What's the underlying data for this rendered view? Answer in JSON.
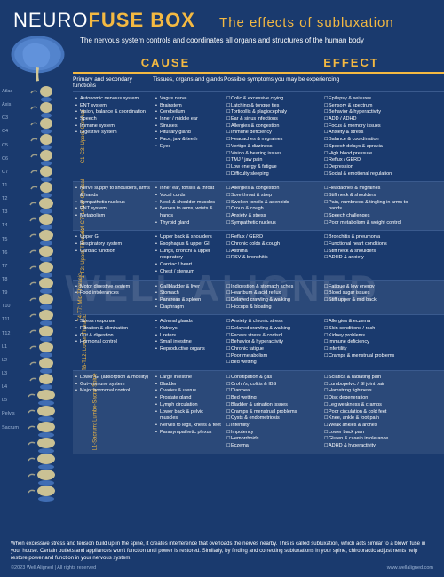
{
  "title": {
    "pre": "NEURO",
    "bold": "FUSE BOX",
    "sub": "The effects of subluxation"
  },
  "tagline": "The nervous system controls and coordinates all organs and structures of the human body",
  "colheads": [
    "CAUSE",
    "EFFECT"
  ],
  "subheads": {
    "c1": "Primary and secondary functions",
    "c2": "Tissues, organs and glands",
    "c3": "Possible symptoms you may be experiencing"
  },
  "spineLabels": [
    "Atlas",
    "Axis",
    "C3",
    "C4",
    "C5",
    "C6",
    "C7",
    "T1",
    "T2",
    "T3",
    "T4",
    "T5",
    "T6",
    "T7",
    "T8",
    "T9",
    "T10",
    "T11",
    "T12",
    "L1",
    "L2",
    "L3",
    "L4",
    "L5",
    "Pelvis",
    "Sacrum"
  ],
  "sections": [
    {
      "label": "C1-C3:\nUpper Cervical",
      "alt": false,
      "c1": [
        "Autonomic nervous system",
        "ENT system",
        "Vision, balance & coordination",
        "Speech",
        "Immune system",
        "Digestive system"
      ],
      "c2": [
        "Vagus nerve",
        "Brainstem",
        "Cerebellum",
        "Inner / middle ear",
        "Sinuses",
        "Pituitary gland",
        "Face, jaw & teeth",
        "Eyes"
      ],
      "c3": [
        "Colic & excessive crying",
        "Latching & tongue ties",
        "Torticollis & plagiocephaly",
        "Ear & sinus infections",
        "Allergies & congestion",
        "Immune deficiency",
        "Headaches & migraines",
        "Vertigo & dizziness",
        "Vision & hearing issues",
        "TMJ / jaw pain",
        "Low energy & fatigue",
        "Difficulty sleeping"
      ],
      "c4": [
        "Epilepsy & seizures",
        "Sensory & spectrum",
        "Behavior & hyperactivity",
        "ADD / ADHD",
        "Focus & memory issues",
        "Anxiety & stress",
        "Balance & coordination",
        "Speech delays & apraxia",
        "High blood pressure",
        "Reflux / GERD",
        "Depression",
        "Social & emotional regulation"
      ]
    },
    {
      "label": "C4-C7:\nLower Cervical",
      "alt": true,
      "c1": [
        "Nerve supply to shoulders, arms & hands",
        "Sympathetic nucleus",
        "ENT system",
        "Metabolism"
      ],
      "c2": [
        "Inner ear, tonsils & throat",
        "Vocal cords",
        "Neck & shoulder muscles",
        "Nerves to arms, wrists & hands",
        "Thyroid gland"
      ],
      "c3": [
        "Allergies & congestion",
        "Sore throat & strep",
        "Swollen tonsils & adenoids",
        "Croup & cough",
        "Anxiety & stress",
        "Sympathetic nucleus"
      ],
      "c4": [
        "Headaches & migraines",
        "Stiff neck & shoulders",
        "Pain, numbness & tingling in arms to hands",
        "Speech challenges",
        "Poor metabolism & weight control"
      ]
    },
    {
      "label": "T1-T2:\nUpper Thoracic",
      "alt": false,
      "c1": [
        "Upper GI",
        "Respiratory system",
        "Cardiac function"
      ],
      "c2": [
        "Upper back & shoulders",
        "Esophagus & upper GI",
        "Lungs, bronchi & upper respiratory",
        "Cardiac / heart",
        "Chest / sternum"
      ],
      "c3": [
        "Reflux / GERD",
        "Chronic colds & cough",
        "Asthma",
        "RSV & bronchitis"
      ],
      "c4": [
        "Bronchitis & pneumonia",
        "Functional heart conditions",
        "Stiff neck & shoulders",
        "ADHD & anxiety"
      ]
    },
    {
      "label": "T4-T7:\nMid-Thoracic",
      "alt": true,
      "c1": [
        "Motor digestive system",
        "Food intolerances"
      ],
      "c2": [
        "Gallbladder & liver",
        "Stomach",
        "Pancreas & spleen",
        "Diaphragm"
      ],
      "c3": [
        "Indigestion & stomach aches",
        "Heartburn & acid reflux",
        "Delayed crawling & walking",
        "Hiccups & bloating"
      ],
      "c4": [
        "Fatigue & low energy",
        "Blood sugar issues",
        "Stiff upper & mid back"
      ]
    },
    {
      "label": "T8-T12:\nLower Thoracic",
      "alt": false,
      "c1": [
        "Stress response",
        "Filtration & elimination",
        "Gut & digestion",
        "Hormonal control"
      ],
      "c2": [
        "Adrenal glands",
        "Kidneys",
        "Ureters",
        "Small intestine",
        "Reproductive organs"
      ],
      "c3": [
        "Anxiety & chronic stress",
        "Delayed crawling & walking",
        "Excess stress & cortisol",
        "Behavior & hyperactivity",
        "Chronic fatigue",
        "Poor metabolism",
        "Bed wetting"
      ],
      "c4": [
        "Allergies & eczema",
        "Skin conditions / rash",
        "Kidney problems",
        "Immune deficiency",
        "Infertility",
        "Cramps & menstrual problems"
      ]
    },
    {
      "label": "L1-Sacrum:\nLumbo-Sacral Spine",
      "alt": true,
      "c1": [
        "Lower GI (absorption & motility)",
        "Gut–immune system",
        "Major hormonal control"
      ],
      "c2": [
        "Large intestine",
        "Bladder",
        "Ovaries & uterus",
        "Prostate gland",
        "Lymph circulation",
        "Lower back & pelvic muscles",
        "Nerves to legs, knees & feet",
        "Parasympathetic plexus"
      ],
      "c3": [
        "Constipation & gas",
        "Crohn's, colitis & IBS",
        "Diarrhea",
        "Bed wetting",
        "Bladder & urination issues",
        "Cramps & menstrual problems",
        "Cysts & endometriosis",
        "Infertility",
        "Impotency",
        "Hemorrhoids",
        "Eczema"
      ],
      "c4": [
        "Sciatica & radiating pain",
        "Lumbopelvic / SI joint pain",
        "Hamstring tightness",
        "Disc degeneration",
        "Leg weakness & cramps",
        "Poor circulation & cold feet",
        "Knee, ankle & foot pain",
        "Weak ankles & arches",
        "Lower back pain",
        "Gluten & casein intolerance",
        "ADHD & hyperactivity"
      ]
    }
  ],
  "footerText": "When excessive stress and tension build up in the spine, it creates interference that overloads the nerves nearby. This is called subluxation, which acts similar to a blown fuse in your house. Certain outlets and appliances won't function until power is restored. Similarly, by finding and correcting subluxations in your spine, chiropractic adjustments help restore power and function in your nervous system.",
  "copyright": "©2023 Well Aligned  |  All rights reserved",
  "url": "www.wellaligned.com",
  "watermark": "WELL ALIGNED",
  "colors": {
    "bg": "#1a3a6e",
    "accent": "#f4b942",
    "vertebra": "#d4c896",
    "disc": "#4a7bc4"
  }
}
